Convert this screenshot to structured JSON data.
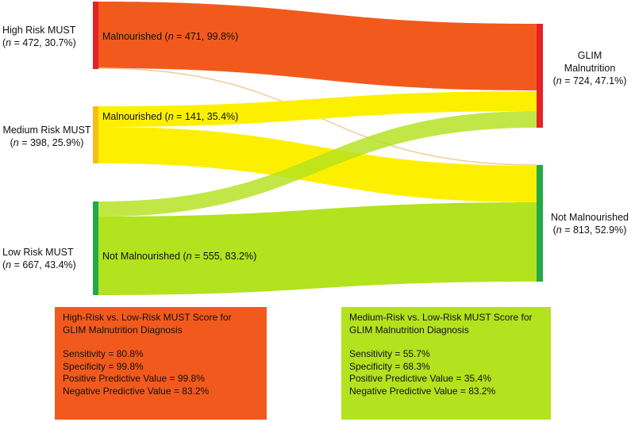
{
  "colors": {
    "high": "#f25a1d",
    "medium": "#fcf000",
    "low": "#b3e21e",
    "high_bar": "#e42227",
    "medium_bar": "#f8bd17",
    "low_bar": "#23a84a",
    "glim_bar": "#e42227",
    "not_bar": "#23a84a",
    "thin_link": "#f2c89a"
  },
  "left_nodes": {
    "high": {
      "name": "High Risk MUST",
      "n": "472",
      "pct": "30.7%"
    },
    "medium": {
      "name": "Medium Risk MUST",
      "n": "398",
      "pct": "25.9%"
    },
    "low": {
      "name": "Low Risk MUST",
      "n": "667",
      "pct": "43.4%"
    }
  },
  "right_nodes": {
    "glim": {
      "name_line1": "GLIM",
      "name_line2": "Malnutrition",
      "n": "724",
      "pct": "47.1%"
    },
    "not": {
      "name": "Not Malnourished",
      "n": "813",
      "pct": "52.9%"
    }
  },
  "flow_labels": {
    "high_malnourished": {
      "name": "Malnourished",
      "n": "471",
      "pct": "99.8%"
    },
    "medium_malnourished": {
      "name": "Malnourished",
      "n": "141",
      "pct": "35.4%"
    },
    "low_not": {
      "name": "Not Malnourished",
      "n": "555",
      "pct": "83.2%"
    }
  },
  "n_symbol": "n",
  "boxes": [
    {
      "title1": "High-Risk vs. Low-Risk MUST Score for",
      "title2": "GLIM Malnutrition Diagnosis",
      "sensitivity": "Sensitivity = 80.8%",
      "specificity": "Specificity = 99.8%",
      "ppv": "Positive Predictive Value = 99.8%",
      "npv": "Negative Predictive Value = 83.2%"
    },
    {
      "title1": "Medium-Risk vs. Low-Risk MUST Score for",
      "title2": "GLIM Malnutrition Diagnosis",
      "sensitivity": "Sensitivity = 55.7%",
      "specificity": "Specificity = 68.3%",
      "ppv": "Positive Predictive Value = 35.4%",
      "npv": "Negative Predictive Value = 83.2%"
    }
  ]
}
